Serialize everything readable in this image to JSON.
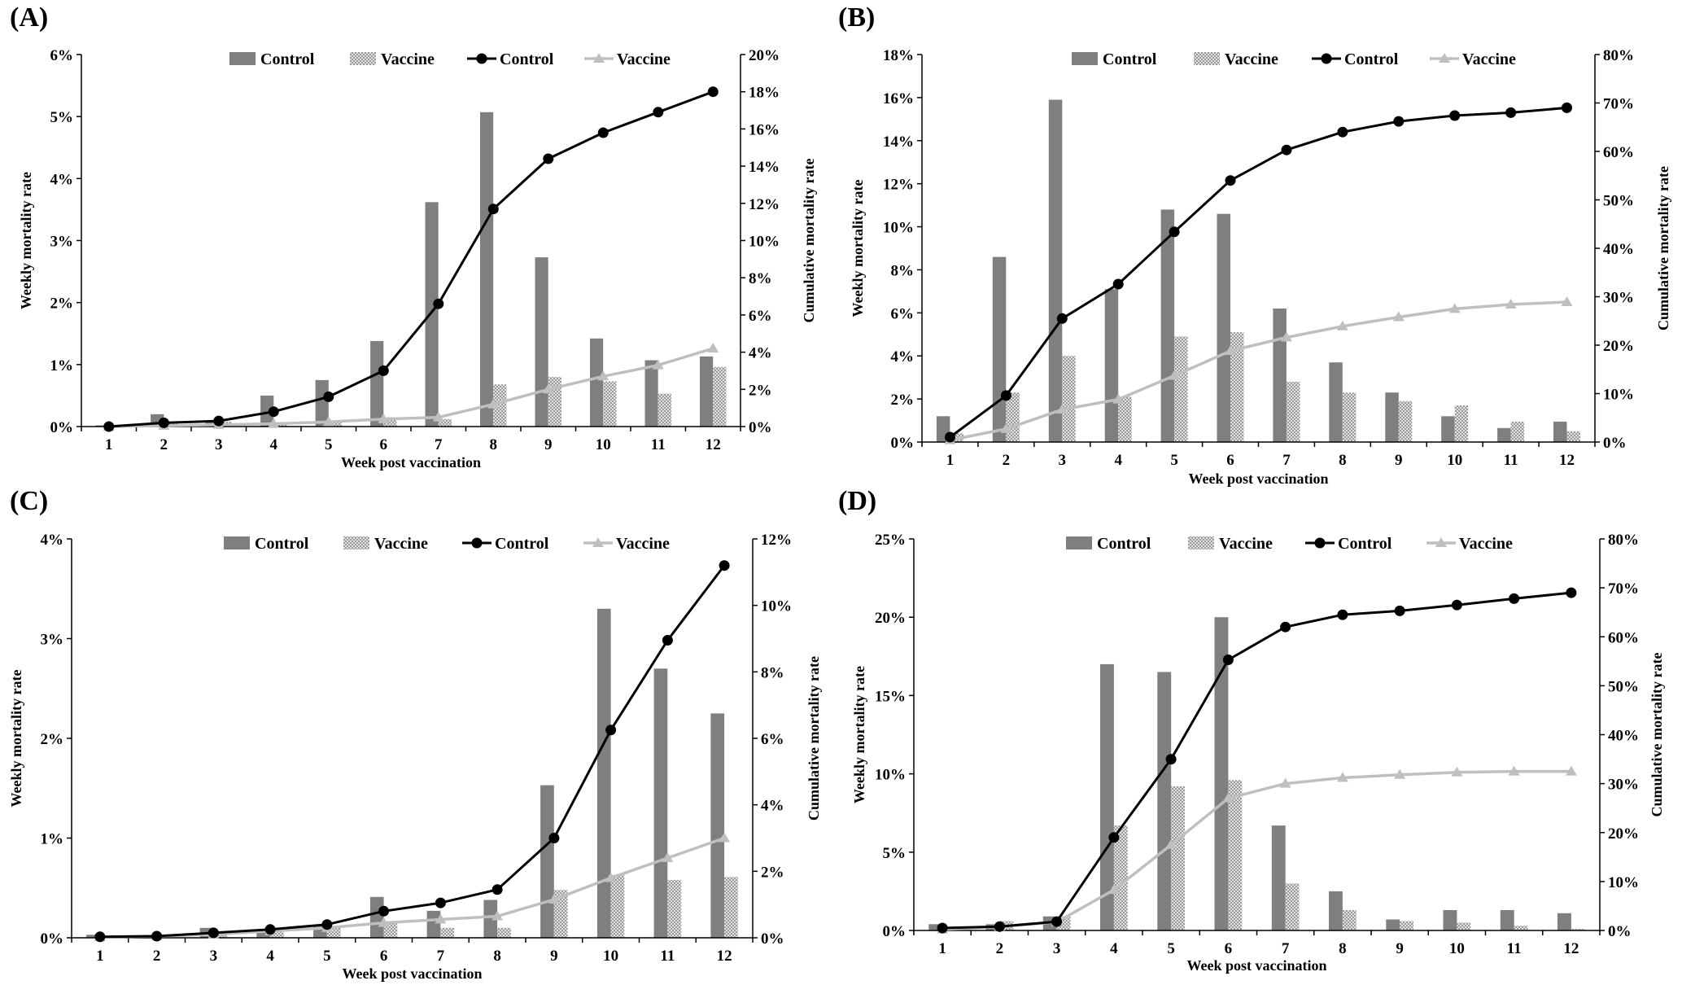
{
  "figure": {
    "legend": {
      "bar_control": "Control",
      "bar_vaccine": "Vaccine",
      "line_control": "Control",
      "line_vaccine": "Vaccine"
    },
    "colors": {
      "bar_control": "#7f7f7f",
      "bar_vaccine": "#bdbdbd",
      "line_control": "#000000",
      "line_vaccine": "#bfbfbf"
    }
  },
  "chart_data": [
    {
      "panel": "(A)",
      "type": "bar",
      "xlabel": "Week post vaccination",
      "ylabel": "Weekly  mortality  rate",
      "y2label": "Cumulative mortality rate",
      "categories": [
        "1",
        "2",
        "3",
        "4",
        "5",
        "6",
        "7",
        "8",
        "9",
        "10",
        "11",
        "12"
      ],
      "ylim": [
        0,
        6
      ],
      "y2lim": [
        0,
        20
      ],
      "yticks": [
        "0%",
        "1%",
        "2%",
        "3%",
        "4%",
        "5%",
        "6%"
      ],
      "y2ticks": [
        "0%",
        "2%",
        "4%",
        "6%",
        "8%",
        "10%",
        "12%",
        "14%",
        "16%",
        "18%",
        "20%"
      ],
      "series": [
        {
          "name": "Control",
          "kind": "bar",
          "axis": "left",
          "values": [
            0.02,
            0.2,
            0.1,
            0.5,
            0.75,
            1.38,
            3.62,
            5.07,
            2.73,
            1.42,
            1.07,
            1.13
          ]
        },
        {
          "name": "Vaccine",
          "kind": "bar",
          "axis": "left",
          "values": [
            0.02,
            0.05,
            0.08,
            0.05,
            0.08,
            0.15,
            0.12,
            0.68,
            0.8,
            0.73,
            0.53,
            0.96
          ]
        },
        {
          "name": "Control",
          "kind": "line",
          "axis": "right",
          "values": [
            0,
            0.2,
            0.3,
            0.8,
            1.6,
            3.0,
            6.6,
            11.7,
            14.4,
            15.8,
            16.9,
            18.0
          ]
        },
        {
          "name": "Vaccine",
          "kind": "line",
          "axis": "right",
          "values": [
            0,
            0.05,
            0.1,
            0.15,
            0.25,
            0.4,
            0.5,
            1.2,
            2.0,
            2.7,
            3.3,
            4.2
          ]
        }
      ]
    },
    {
      "panel": "(B)",
      "type": "bar",
      "xlabel": "Week post vaccination",
      "ylabel": "Weekly  mortality  rate",
      "y2label": "Cumulative  mortality  rate",
      "categories": [
        "1",
        "2",
        "3",
        "4",
        "5",
        "6",
        "7",
        "8",
        "9",
        "10",
        "11",
        "12"
      ],
      "ylim": [
        0,
        18
      ],
      "y2lim": [
        0,
        80
      ],
      "yticks": [
        "0%",
        "2%",
        "4%",
        "6%",
        "8%",
        "10%",
        "12%",
        "14%",
        "16%",
        "18%"
      ],
      "y2ticks": [
        "0%",
        "10%",
        "20%",
        "30%",
        "40%",
        "50%",
        "60%",
        "70%",
        "80%"
      ],
      "series": [
        {
          "name": "Control",
          "kind": "bar",
          "axis": "left",
          "values": [
            1.2,
            8.6,
            15.9,
            7.1,
            10.8,
            10.6,
            6.2,
            3.7,
            2.3,
            1.2,
            0.65,
            0.95
          ]
        },
        {
          "name": "Vaccine",
          "kind": "bar",
          "axis": "left",
          "values": [
            0.4,
            2.3,
            4.0,
            2.1,
            4.9,
            5.1,
            2.8,
            2.3,
            1.9,
            1.7,
            0.95,
            0.5
          ]
        },
        {
          "name": "Control",
          "kind": "line",
          "axis": "right",
          "values": [
            1.0,
            9.6,
            25.5,
            32.6,
            43.4,
            54.0,
            60.3,
            64.0,
            66.2,
            67.4,
            68.0,
            69.0
          ]
        },
        {
          "name": "Vaccine",
          "kind": "line",
          "axis": "right",
          "values": [
            0.4,
            2.7,
            6.7,
            8.8,
            13.7,
            18.8,
            21.6,
            23.9,
            25.8,
            27.5,
            28.4,
            28.9
          ]
        }
      ]
    },
    {
      "panel": "(C)",
      "type": "bar",
      "xlabel": "Week post vaccination",
      "ylabel": "Weekly  mortality rate",
      "y2label": "Cumulative  mortality  rate",
      "categories": [
        "1",
        "2",
        "3",
        "4",
        "5",
        "6",
        "7",
        "8",
        "9",
        "10",
        "11",
        "12"
      ],
      "ylim": [
        0,
        4
      ],
      "y2lim": [
        0,
        12
      ],
      "yticks": [
        "0%",
        "1%",
        "2%",
        "3%",
        "4%"
      ],
      "y2ticks": [
        "0%",
        "2%",
        "4%",
        "6%",
        "8%",
        "10%",
        "12%"
      ],
      "series": [
        {
          "name": "Control",
          "kind": "bar",
          "axis": "left",
          "values": [
            0.03,
            0.02,
            0.1,
            0.08,
            0.12,
            0.41,
            0.27,
            0.38,
            1.53,
            3.3,
            2.7,
            2.25
          ]
        },
        {
          "name": "Vaccine",
          "kind": "bar",
          "axis": "left",
          "values": [
            0.02,
            0.03,
            0.05,
            0.07,
            0.1,
            0.16,
            0.1,
            0.1,
            0.48,
            0.63,
            0.58,
            0.61
          ]
        },
        {
          "name": "Control",
          "kind": "line",
          "axis": "right",
          "values": [
            0.03,
            0.05,
            0.15,
            0.25,
            0.4,
            0.8,
            1.05,
            1.45,
            3.0,
            6.25,
            8.95,
            11.2
          ]
        },
        {
          "name": "Vaccine",
          "kind": "line",
          "axis": "right",
          "values": [
            0.02,
            0.05,
            0.1,
            0.2,
            0.3,
            0.45,
            0.55,
            0.65,
            1.15,
            1.8,
            2.4,
            3.0
          ]
        }
      ]
    },
    {
      "panel": "(D)",
      "type": "bar",
      "xlabel": "Week post vaccination",
      "ylabel": "Weekly  mortality  rate",
      "y2label": "Cumulative  mortality  rate",
      "categories": [
        "1",
        "2",
        "3",
        "4",
        "5",
        "6",
        "7",
        "8",
        "9",
        "10",
        "11",
        "12"
      ],
      "ylim": [
        0,
        25
      ],
      "y2lim": [
        0,
        80
      ],
      "yticks": [
        "0%",
        "5%",
        "10%",
        "15%",
        "20%",
        "25%"
      ],
      "y2ticks": [
        "0%",
        "10%",
        "20%",
        "30%",
        "40%",
        "50%",
        "60%",
        "70%",
        "80%"
      ],
      "series": [
        {
          "name": "Control",
          "kind": "bar",
          "axis": "left",
          "values": [
            0.4,
            0.4,
            0.9,
            17.0,
            16.5,
            20.0,
            6.7,
            2.5,
            0.7,
            1.3,
            1.3,
            1.1
          ]
        },
        {
          "name": "Vaccine",
          "kind": "bar",
          "axis": "left",
          "values": [
            0.2,
            0.6,
            0.9,
            6.7,
            9.2,
            9.6,
            3.0,
            1.3,
            0.6,
            0.5,
            0.3,
            0.1
          ]
        },
        {
          "name": "Control",
          "kind": "line",
          "axis": "right",
          "values": [
            0.5,
            0.8,
            1.8,
            19.0,
            35.0,
            55.3,
            62.0,
            64.5,
            65.3,
            66.5,
            67.8,
            69.0
          ]
        },
        {
          "name": "Vaccine",
          "kind": "line",
          "axis": "right",
          "values": [
            0.2,
            0.8,
            1.7,
            8.3,
            17.5,
            27.0,
            30.0,
            31.2,
            31.8,
            32.3,
            32.5,
            32.5
          ]
        }
      ]
    }
  ]
}
